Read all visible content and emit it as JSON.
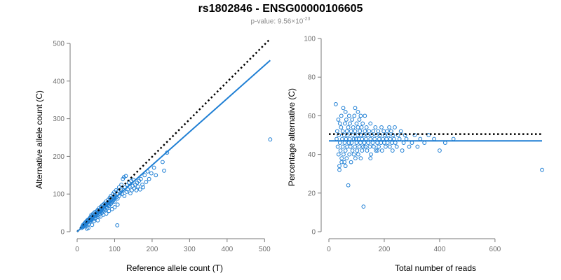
{
  "header": {
    "title": "rs1802846 - ENSG00000106605",
    "pvalue_label": "p-value: 9.56×10",
    "pvalue_exponent": "-23"
  },
  "colors": {
    "points": "#1f7fd4",
    "fit_line": "#1f7fd4",
    "reference_line": "#000000",
    "axis": "#7a7a7a"
  },
  "chart_data": [
    {
      "type": "scatter",
      "title": "",
      "xlabel": "Reference allele count (T)",
      "ylabel": "Alternative allele count (C)",
      "xlim": [
        0,
        520
      ],
      "ylim": [
        0,
        500
      ],
      "x_ticks": [
        0,
        100,
        200,
        300,
        400,
        500
      ],
      "y_ticks": [
        0,
        100,
        200,
        300,
        400,
        500
      ],
      "grid": false,
      "lines": [
        {
          "style": "dotted",
          "color": "#000000",
          "x": [
            0,
            515
          ],
          "y": [
            0,
            512
          ]
        },
        {
          "style": "solid",
          "color": "#1f7fd4",
          "x": [
            0,
            515
          ],
          "y": [
            0,
            455
          ]
        }
      ],
      "points": [
        [
          12,
          10
        ],
        [
          14,
          14
        ],
        [
          15,
          12
        ],
        [
          16,
          18
        ],
        [
          18,
          16
        ],
        [
          18,
          20
        ],
        [
          20,
          14
        ],
        [
          20,
          22
        ],
        [
          22,
          18
        ],
        [
          22,
          25
        ],
        [
          24,
          20
        ],
        [
          25,
          28
        ],
        [
          26,
          22
        ],
        [
          27,
          30
        ],
        [
          28,
          25
        ],
        [
          29,
          32
        ],
        [
          30,
          28
        ],
        [
          30,
          20
        ],
        [
          32,
          30
        ],
        [
          33,
          35
        ],
        [
          34,
          27
        ],
        [
          35,
          38
        ],
        [
          36,
          32
        ],
        [
          37,
          40
        ],
        [
          38,
          30
        ],
        [
          38,
          45
        ],
        [
          40,
          35
        ],
        [
          40,
          42
        ],
        [
          42,
          38
        ],
        [
          43,
          48
        ],
        [
          44,
          33
        ],
        [
          45,
          44
        ],
        [
          46,
          40
        ],
        [
          47,
          52
        ],
        [
          48,
          45
        ],
        [
          48,
          36
        ],
        [
          50,
          50
        ],
        [
          50,
          42
        ],
        [
          52,
          47
        ],
        [
          53,
          55
        ],
        [
          54,
          44
        ],
        [
          55,
          58
        ],
        [
          56,
          50
        ],
        [
          57,
          40
        ],
        [
          58,
          55
        ],
        [
          58,
          62
        ],
        [
          60,
          52
        ],
        [
          60,
          48
        ],
        [
          62,
          58
        ],
        [
          63,
          66
        ],
        [
          64,
          55
        ],
        [
          65,
          60
        ],
        [
          66,
          50
        ],
        [
          67,
          70
        ],
        [
          68,
          62
        ],
        [
          69,
          56
        ],
        [
          70,
          65
        ],
        [
          70,
          72
        ],
        [
          72,
          60
        ],
        [
          73,
          75
        ],
        [
          74,
          68
        ],
        [
          75,
          58
        ],
        [
          76,
          72
        ],
        [
          77,
          80
        ],
        [
          78,
          66
        ],
        [
          79,
          74
        ],
        [
          80,
          70
        ],
        [
          80,
          62
        ],
        [
          82,
          78
        ],
        [
          83,
          85
        ],
        [
          84,
          72
        ],
        [
          85,
          68
        ],
        [
          86,
          80
        ],
        [
          87,
          90
        ],
        [
          88,
          76
        ],
        [
          89,
          82
        ],
        [
          90,
          74
        ],
        [
          90,
          95
        ],
        [
          92,
          85
        ],
        [
          93,
          78
        ],
        [
          94,
          88
        ],
        [
          95,
          100
        ],
        [
          96,
          82
        ],
        [
          97,
          92
        ],
        [
          98,
          86
        ],
        [
          99,
          105
        ],
        [
          100,
          90
        ],
        [
          100,
          80
        ],
        [
          102,
          96
        ],
        [
          104,
          110
        ],
        [
          105,
          92
        ],
        [
          106,
          100
        ],
        [
          108,
          88
        ],
        [
          110,
          108
        ],
        [
          112,
          95
        ],
        [
          112,
          118
        ],
        [
          115,
          102
        ],
        [
          116,
          112
        ],
        [
          118,
          125
        ],
        [
          120,
          100
        ],
        [
          122,
          140
        ],
        [
          124,
          110
        ],
        [
          125,
          145
        ],
        [
          126,
          95
        ],
        [
          128,
          118
        ],
        [
          130,
          148
        ],
        [
          132,
          106
        ],
        [
          133,
          124
        ],
        [
          135,
          112
        ],
        [
          138,
          130
        ],
        [
          140,
          120
        ],
        [
          142,
          102
        ],
        [
          144,
          135
        ],
        [
          146,
          110
        ],
        [
          148,
          122
        ],
        [
          150,
          138
        ],
        [
          152,
          115
        ],
        [
          155,
          125
        ],
        [
          158,
          110
        ],
        [
          160,
          130
        ],
        [
          162,
          120
        ],
        [
          165,
          135
        ],
        [
          168,
          112
        ],
        [
          170,
          140
        ],
        [
          174,
          125
        ],
        [
          176,
          118
        ],
        [
          180,
          150
        ],
        [
          184,
          132
        ],
        [
          188,
          160
        ],
        [
          192,
          140
        ],
        [
          198,
          155
        ],
        [
          205,
          170
        ],
        [
          210,
          150
        ],
        [
          228,
          185
        ],
        [
          232,
          162
        ],
        [
          240,
          210
        ],
        [
          107,
          17
        ],
        [
          30,
          10
        ],
        [
          26,
          8
        ],
        [
          40,
          18
        ],
        [
          45,
          28
        ],
        [
          55,
          30
        ],
        [
          62,
          40
        ],
        [
          70,
          45
        ],
        [
          78,
          48
        ],
        [
          85,
          55
        ],
        [
          93,
          60
        ],
        [
          100,
          65
        ],
        [
          108,
          72
        ],
        [
          515,
          245
        ]
      ]
    },
    {
      "type": "scatter",
      "title": "",
      "xlabel": "Total number of reads",
      "ylabel": "Percentage alternative (C)",
      "xlim": [
        0,
        770
      ],
      "ylim": [
        0,
        100
      ],
      "x_ticks": [
        0,
        200,
        400,
        600
      ],
      "y_ticks": [
        0,
        20,
        40,
        60,
        80,
        100
      ],
      "grid": false,
      "lines": [
        {
          "style": "dotted",
          "color": "#000000",
          "x": [
            0,
            770
          ],
          "y": [
            50.5,
            50.5
          ]
        },
        {
          "style": "solid",
          "color": "#1f7fd4",
          "x": [
            0,
            770
          ],
          "y": [
            47,
            47
          ]
        }
      ],
      "points": [
        [
          25,
          66
        ],
        [
          28,
          48
        ],
        [
          30,
          52
        ],
        [
          32,
          44
        ],
        [
          34,
          58
        ],
        [
          35,
          40
        ],
        [
          36,
          50
        ],
        [
          38,
          34
        ],
        [
          40,
          46
        ],
        [
          40,
          56
        ],
        [
          42,
          42
        ],
        [
          44,
          54
        ],
        [
          45,
          60
        ],
        [
          46,
          38
        ],
        [
          48,
          48
        ],
        [
          50,
          44
        ],
        [
          50,
          52
        ],
        [
          52,
          64
        ],
        [
          53,
          40
        ],
        [
          55,
          50
        ],
        [
          56,
          36
        ],
        [
          57,
          46
        ],
        [
          58,
          56
        ],
        [
          60,
          42
        ],
        [
          60,
          62
        ],
        [
          62,
          48
        ],
        [
          63,
          58
        ],
        [
          64,
          38
        ],
        [
          65,
          52
        ],
        [
          66,
          44
        ],
        [
          68,
          50
        ],
        [
          70,
          54
        ],
        [
          70,
          24
        ],
        [
          72,
          46
        ],
        [
          73,
          60
        ],
        [
          74,
          40
        ],
        [
          75,
          48
        ],
        [
          76,
          56
        ],
        [
          78,
          44
        ],
        [
          80,
          52
        ],
        [
          80,
          36
        ],
        [
          82,
          46
        ],
        [
          84,
          58
        ],
        [
          85,
          42
        ],
        [
          86,
          50
        ],
        [
          88,
          54
        ],
        [
          90,
          40
        ],
        [
          90,
          48
        ],
        [
          92,
          60
        ],
        [
          94,
          44
        ],
        [
          95,
          52
        ],
        [
          96,
          38
        ],
        [
          98,
          48
        ],
        [
          100,
          56
        ],
        [
          100,
          46
        ],
        [
          102,
          42
        ],
        [
          104,
          50
        ],
        [
          105,
          54
        ],
        [
          106,
          40
        ],
        [
          108,
          48
        ],
        [
          110,
          58
        ],
        [
          110,
          44
        ],
        [
          112,
          52
        ],
        [
          114,
          46
        ],
        [
          115,
          38
        ],
        [
          116,
          50
        ],
        [
          118,
          54
        ],
        [
          120,
          42
        ],
        [
          120,
          48
        ],
        [
          122,
          56
        ],
        [
          124,
          44
        ],
        [
          125,
          13
        ],
        [
          126,
          50
        ],
        [
          128,
          46
        ],
        [
          130,
          52
        ],
        [
          130,
          60
        ],
        [
          132,
          44
        ],
        [
          134,
          48
        ],
        [
          136,
          54
        ],
        [
          138,
          42
        ],
        [
          140,
          50
        ],
        [
          142,
          46
        ],
        [
          145,
          52
        ],
        [
          148,
          44
        ],
        [
          150,
          48
        ],
        [
          150,
          56
        ],
        [
          152,
          40
        ],
        [
          155,
          50
        ],
        [
          158,
          46
        ],
        [
          160,
          52
        ],
        [
          162,
          44
        ],
        [
          165,
          48
        ],
        [
          168,
          54
        ],
        [
          170,
          42
        ],
        [
          172,
          50
        ],
        [
          175,
          46
        ],
        [
          178,
          52
        ],
        [
          180,
          44
        ],
        [
          182,
          48
        ],
        [
          185,
          50
        ],
        [
          188,
          46
        ],
        [
          190,
          54
        ],
        [
          192,
          42
        ],
        [
          195,
          48
        ],
        [
          198,
          52
        ],
        [
          200,
          46
        ],
        [
          202,
          50
        ],
        [
          205,
          44
        ],
        [
          208,
          48
        ],
        [
          210,
          52
        ],
        [
          212,
          46
        ],
        [
          215,
          50
        ],
        [
          218,
          54
        ],
        [
          220,
          44
        ],
        [
          222,
          48
        ],
        [
          225,
          52
        ],
        [
          228,
          46
        ],
        [
          230,
          42
        ],
        [
          232,
          50
        ],
        [
          235,
          48
        ],
        [
          238,
          54
        ],
        [
          240,
          46
        ],
        [
          245,
          44
        ],
        [
          250,
          50
        ],
        [
          255,
          48
        ],
        [
          260,
          52
        ],
        [
          265,
          42
        ],
        [
          270,
          46
        ],
        [
          275,
          50
        ],
        [
          280,
          48
        ],
        [
          290,
          44
        ],
        [
          300,
          46
        ],
        [
          310,
          50
        ],
        [
          320,
          44
        ],
        [
          330,
          48
        ],
        [
          345,
          46
        ],
        [
          360,
          50
        ],
        [
          380,
          48
        ],
        [
          400,
          42
        ],
        [
          420,
          46
        ],
        [
          450,
          48
        ],
        [
          770,
          32
        ],
        [
          38,
          32
        ],
        [
          46,
          36
        ],
        [
          60,
          34
        ],
        [
          150,
          38
        ],
        [
          175,
          42
        ],
        [
          95,
          64
        ],
        [
          105,
          62
        ],
        [
          115,
          60
        ]
      ]
    }
  ]
}
